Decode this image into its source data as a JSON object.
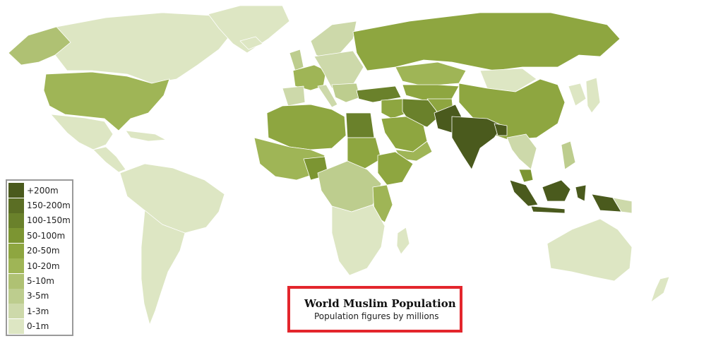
{
  "title": "World Muslim Population",
  "subtitle": "Population figures by millions",
  "legend": [
    {
      "label": "+200m",
      "color": "#4a5a1d"
    },
    {
      "label": "150-200m",
      "color": "#5b6e24"
    },
    {
      "label": "100-150m",
      "color": "#6a812b"
    },
    {
      "label": "50-100m",
      "color": "#7c9532"
    },
    {
      "label": "20-50m",
      "color": "#8ea640"
    },
    {
      "label": "10-20m",
      "color": "#9fb556"
    },
    {
      "label": "5-10m",
      "color": "#afc173"
    },
    {
      "label": "3-5m",
      "color": "#bdcd8e"
    },
    {
      "label": "1-3m",
      "color": "#cdd9aa"
    },
    {
      "label": "0-1m",
      "color": "#dde6c3"
    }
  ],
  "colors": {
    "accent_border": "#e3262c",
    "legend_border": "#9a9a9a",
    "land_boundaries": "#ffffff"
  }
}
